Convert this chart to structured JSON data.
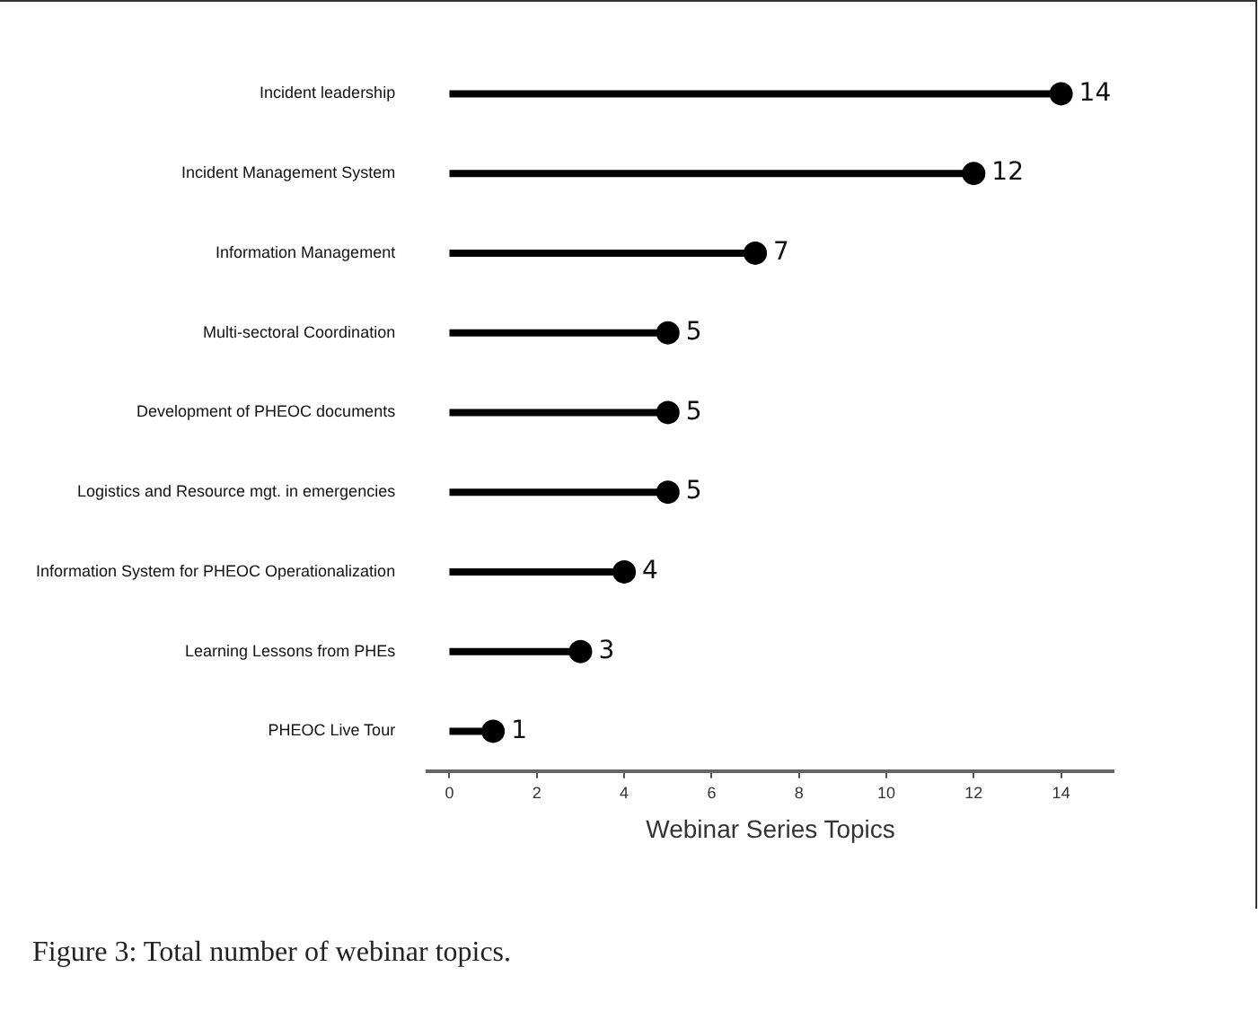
{
  "chart_data": {
    "type": "lollipop",
    "orientation": "horizontal",
    "xlabel": "Webinar Series Topics",
    "categories": [
      "Incident leadership",
      "Incident Management System",
      "Information Management",
      "Multi-sectoral Coordination",
      "Development of PHEOC documents",
      "Logistics and Resource mgt. in emergencies",
      "Information System for PHEOC Operationalization",
      "Learning Lessons from PHEs",
      "PHEOC Live Tour"
    ],
    "values": [
      14,
      12,
      7,
      5,
      5,
      5,
      4,
      3,
      1
    ],
    "color": "#000000",
    "marker": "circle",
    "data_labels": true,
    "grid": false,
    "legend": false,
    "xlim": [
      -0.5,
      15.2
    ],
    "xticks": [
      0,
      2,
      4,
      6,
      8,
      10,
      12,
      14
    ],
    "annotations": [
      "Figure 3: Total number of webinar topics."
    ]
  }
}
